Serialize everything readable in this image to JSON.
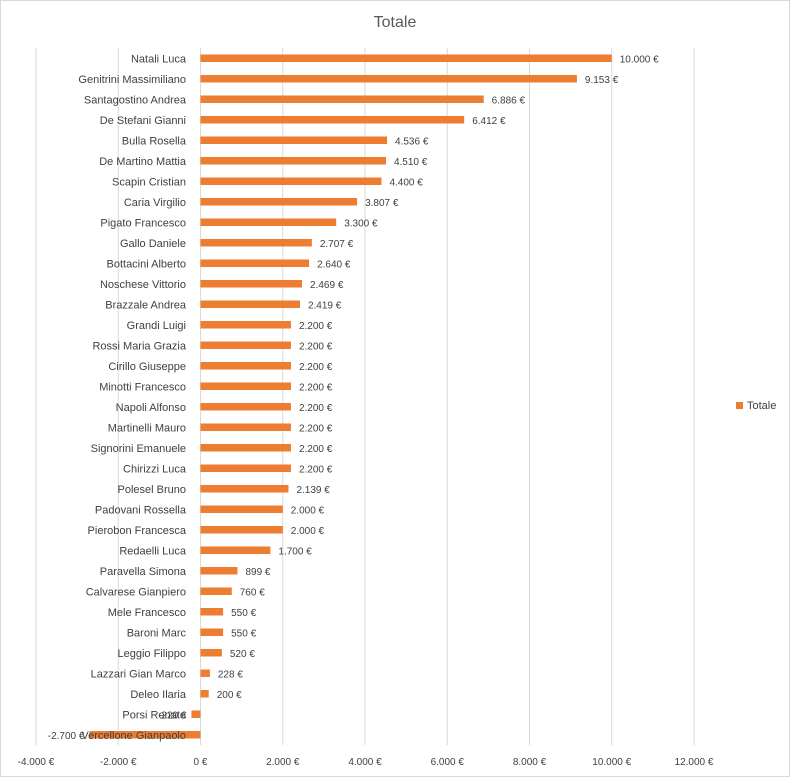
{
  "chart_data": {
    "type": "bar",
    "orientation": "horizontal",
    "title": "Totale",
    "xlim": [
      -4000,
      12000
    ],
    "x_ticks": [
      -4000,
      -2000,
      0,
      2000,
      4000,
      6000,
      8000,
      10000,
      12000
    ],
    "x_tick_labels": [
      "-4.000 €",
      "-2.000 €",
      "0 €",
      "2.000 €",
      "4.000 €",
      "6.000 €",
      "8.000 €",
      "10.000 €",
      "12.000 €"
    ],
    "grid": true,
    "legend_position": "right",
    "color": "#ED7D31",
    "series": [
      {
        "name": "Totale",
        "categories": [
          "Natali Luca",
          "Genitrini Massimiliano",
          "Santagostino Andrea",
          "De Stefani Gianni",
          "Bulla Rosella",
          "De Martino Mattia",
          "Scapin Cristian",
          "Caria Virgilio",
          "Pigato Francesco",
          "Gallo Daniele",
          "Bottacini Alberto",
          "Noschese Vittorio",
          "Brazzale Andrea",
          "Grandi Luigi",
          "Rossi Maria Grazia",
          "Cirillo Giuseppe",
          "Minotti Francesco",
          "Napoli Alfonso",
          "Martinelli Mauro",
          "Signorini Emanuele",
          "Chirizzi Luca",
          "Polesel Bruno",
          "Padovani Rossella",
          "Pierobon Francesca",
          "Redaelli Luca",
          "Paravella Simona",
          "Calvarese Gianpiero",
          "Mele Francesco",
          "Baroni Marc",
          "Leggio Filippo",
          "Lazzari Gian Marco",
          "Deleo Ilaria",
          "Porsi Renato",
          "Vercellone Gianpaolo"
        ],
        "values": [
          10000,
          9153,
          6886,
          6412,
          4536,
          4510,
          4400,
          3807,
          3300,
          2707,
          2640,
          2469,
          2419,
          2200,
          2200,
          2200,
          2200,
          2200,
          2200,
          2200,
          2200,
          2139,
          2000,
          2000,
          1700,
          899,
          760,
          550,
          550,
          520,
          228,
          200,
          -220,
          -2700
        ],
        "value_labels": [
          "10.000 €",
          "9.153 €",
          "6.886 €",
          "6.412 €",
          "4.536 €",
          "4.510 €",
          "4.400 €",
          "3.807 €",
          "3.300 €",
          "2.707 €",
          "2.640 €",
          "2.469 €",
          "2.419 €",
          "2.200 €",
          "2.200 €",
          "2.200 €",
          "2.200 €",
          "2.200 €",
          "2.200 €",
          "2.200 €",
          "2.200 €",
          "2.139 €",
          "2.000 €",
          "2.000 €",
          "1.700 €",
          "899 €",
          "760 €",
          "550 €",
          "550 €",
          "520 €",
          "228 €",
          "200 €",
          "-220 €",
          "-2.700 €"
        ]
      }
    ]
  }
}
